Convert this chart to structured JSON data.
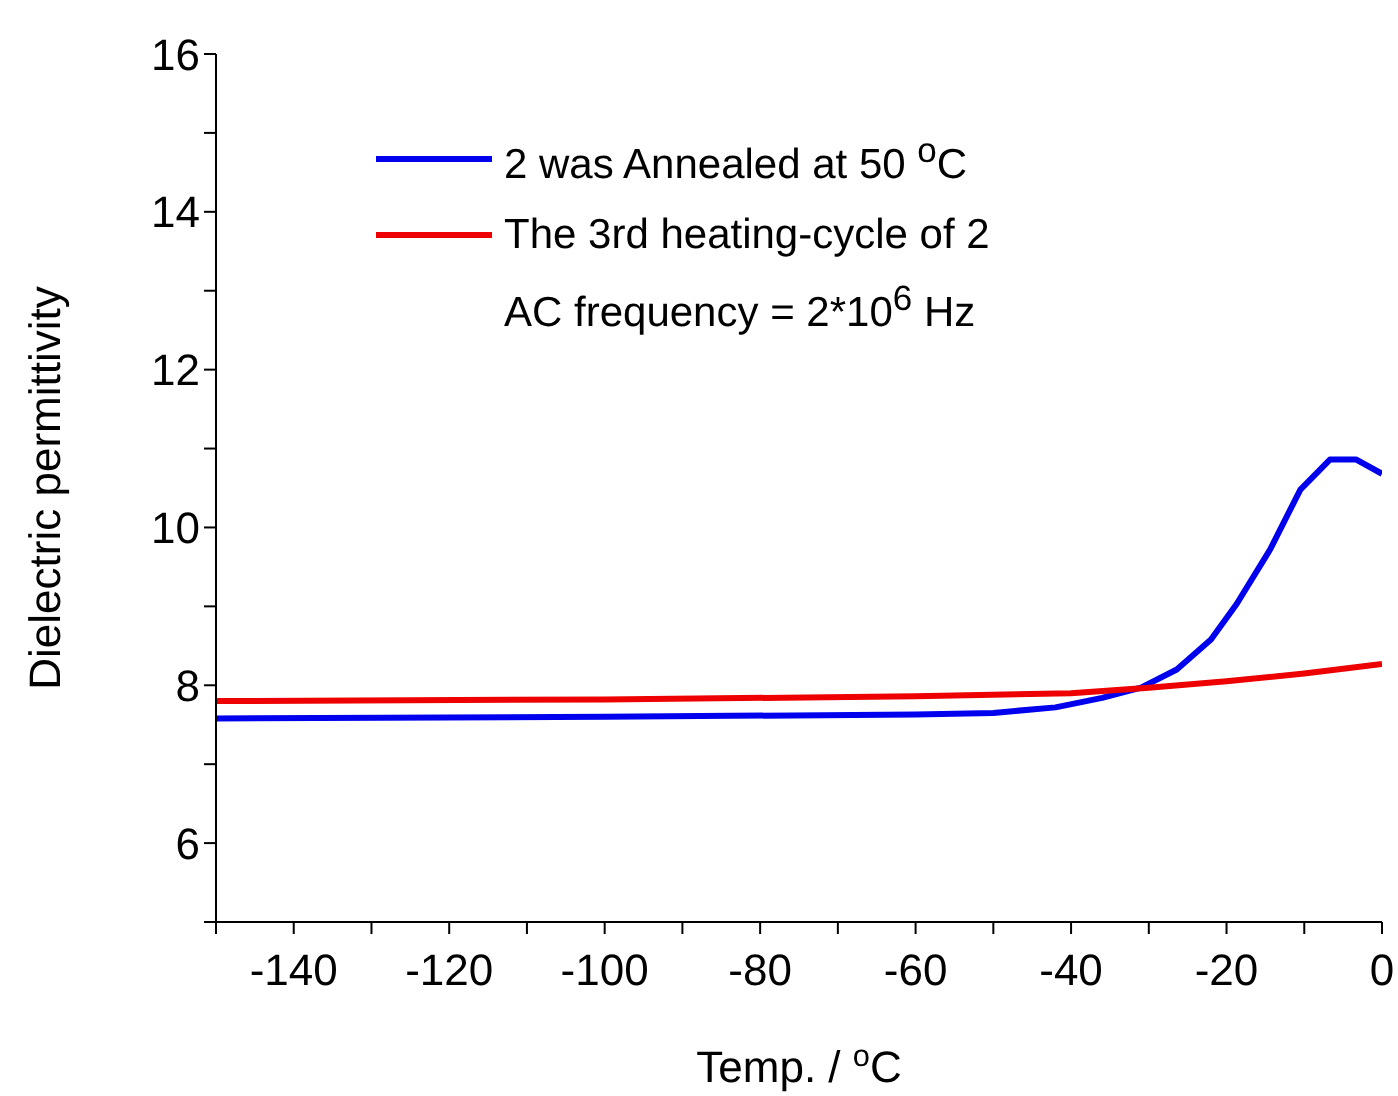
{
  "chart_data": {
    "type": "line",
    "xlabel": "Temp. / $^{o}$C",
    "ylabel": "Dielectric permittivity",
    "annotations": [
      "AC frequency = 2*10$^{6}$ Hz"
    ],
    "series": [
      {
        "name": "2 was Annealed at 50 $^{o}$C",
        "color": "#0000ee",
        "x": [
          -150,
          -100,
          -60,
          -50,
          -42,
          -36,
          -31,
          -26.4,
          -22,
          -18.7,
          -14.4,
          -10.5,
          -6.7,
          -3.3,
          0
        ],
        "values": [
          7.58,
          7.6,
          7.63,
          7.65,
          7.72,
          7.84,
          7.97,
          8.2,
          8.58,
          9.03,
          9.72,
          10.48,
          10.86,
          10.86,
          10.68
        ]
      },
      {
        "name": "The 3rd heating-cycle of 2",
        "color": "#ee0000",
        "x": [
          -150,
          -100,
          -60,
          -40,
          -30,
          -20,
          -10,
          0
        ],
        "values": [
          7.8,
          7.82,
          7.86,
          7.9,
          7.97,
          8.05,
          8.15,
          8.27
        ]
      }
    ],
    "xlim": [
      -150,
      0
    ],
    "xticks": [
      {
        "value": -150,
        "label": null
      },
      -140,
      {
        "value": -130,
        "label": null
      },
      -120,
      {
        "value": -110,
        "label": null
      },
      -100,
      {
        "value": -90,
        "label": null
      },
      -80,
      {
        "value": -70,
        "label": null
      },
      -60,
      {
        "value": -50,
        "label": null
      },
      -40,
      {
        "value": -30,
        "label": null
      },
      -20,
      {
        "value": -10,
        "label": null
      },
      0
    ],
    "ylim": [
      5,
      16
    ],
    "yticks": [
      {
        "value": 5,
        "label": null
      },
      6,
      {
        "value": 7,
        "label": null
      },
      8,
      {
        "value": 9,
        "label": null
      },
      10,
      {
        "value": 11,
        "label": null
      },
      12,
      {
        "value": 13,
        "label": null
      },
      14,
      {
        "value": 15,
        "label": null
      },
      16
    ],
    "grid": false,
    "legend": "top",
    "marker": "none",
    "line_style": "solid"
  }
}
